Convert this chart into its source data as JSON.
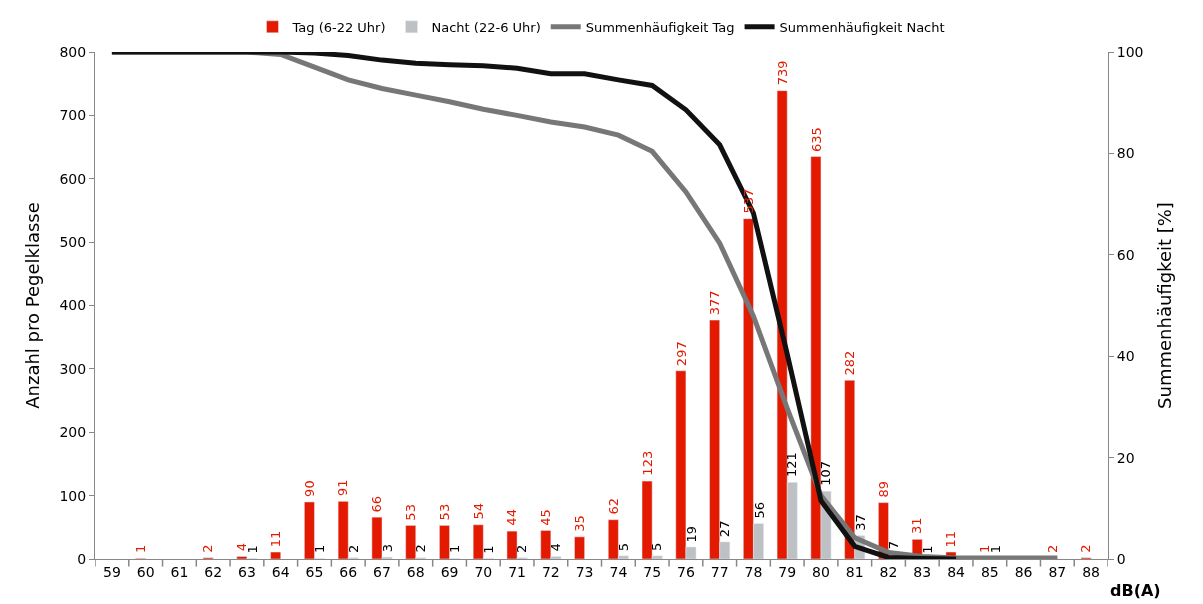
{
  "chart_data": {
    "type": "bar",
    "xlabel": "dB(A)",
    "ylabel": "Anzahl pro Pegelklasse",
    "y2label": "Summenhäufigkeit [%]",
    "categories": [
      "59",
      "60",
      "61",
      "62",
      "63",
      "64",
      "65",
      "66",
      "67",
      "68",
      "69",
      "70",
      "71",
      "72",
      "73",
      "74",
      "75",
      "76",
      "77",
      "78",
      "79",
      "80",
      "81",
      "82",
      "83",
      "84",
      "85",
      "86",
      "87",
      "88"
    ],
    "series": [
      {
        "name": "Tag (6-22 Uhr)",
        "color": "#e41a00",
        "values": [
          null,
          1,
          null,
          2,
          4,
          11,
          90,
          91,
          66,
          53,
          53,
          54,
          44,
          45,
          35,
          62,
          123,
          297,
          377,
          537,
          739,
          635,
          282,
          89,
          31,
          11,
          1,
          null,
          2,
          2
        ],
        "value_labels": [
          null,
          "1",
          null,
          "2",
          "4",
          "11",
          "90",
          "91",
          "66",
          "53",
          "53",
          "54",
          "44",
          "45",
          "35",
          "62",
          "123",
          "297",
          "377",
          "537",
          "739",
          "635",
          "282",
          "89",
          "31",
          "11",
          "1",
          null,
          "2",
          "2"
        ]
      },
      {
        "name": "Nacht (22-6 Uhr)",
        "color": "#bdc1c4",
        "values": [
          null,
          null,
          null,
          null,
          1,
          null,
          1,
          2,
          3,
          2,
          1,
          1,
          2,
          4,
          null,
          5,
          5,
          19,
          27,
          56,
          121,
          107,
          37,
          7,
          1,
          null,
          1,
          null,
          null,
          null
        ],
        "value_labels": [
          null,
          null,
          null,
          null,
          "1",
          null,
          "1",
          "2",
          "3",
          "2",
          "1",
          "1",
          "2",
          "4",
          null,
          "5",
          "5",
          "19",
          "27",
          "56",
          "121",
          "107",
          "37",
          "7",
          "1",
          null,
          "1",
          null,
          null,
          null
        ]
      },
      {
        "name": "Summenhäufigkeit Tag",
        "type": "line",
        "axis": "y2",
        "color": "#777777",
        "values": [
          100,
          100,
          100,
          100,
          100,
          99.5,
          97,
          94.5,
          92.8,
          91.5,
          90.2,
          88.7,
          87.5,
          86.2,
          85.2,
          83.6,
          80.4,
          72.4,
          62.3,
          47.9,
          29.7,
          12.5,
          4.2,
          1.3,
          0.5,
          0.2,
          0.2,
          0.2,
          0.2,
          null
        ]
      },
      {
        "name": "Summenhäufigkeit Nacht",
        "type": "line",
        "axis": "y2",
        "color": "#111111",
        "values": [
          100,
          100,
          100,
          100,
          100,
          100,
          99.8,
          99.3,
          98.4,
          97.8,
          97.5,
          97.3,
          96.8,
          95.7,
          95.7,
          94.5,
          93.4,
          88.6,
          81.7,
          68.2,
          40.4,
          11.5,
          2.5,
          0.3,
          0.1,
          0,
          null,
          null,
          null,
          null
        ]
      }
    ],
    "ylim": [
      0,
      800
    ],
    "yticks": [
      0,
      100,
      200,
      300,
      400,
      500,
      600,
      700,
      800
    ],
    "y2lim": [
      0,
      100
    ],
    "y2ticks": [
      0,
      20,
      40,
      60,
      80,
      100
    ],
    "legend": "top",
    "grid": false,
    "marker": "none",
    "line_style": "solid"
  }
}
